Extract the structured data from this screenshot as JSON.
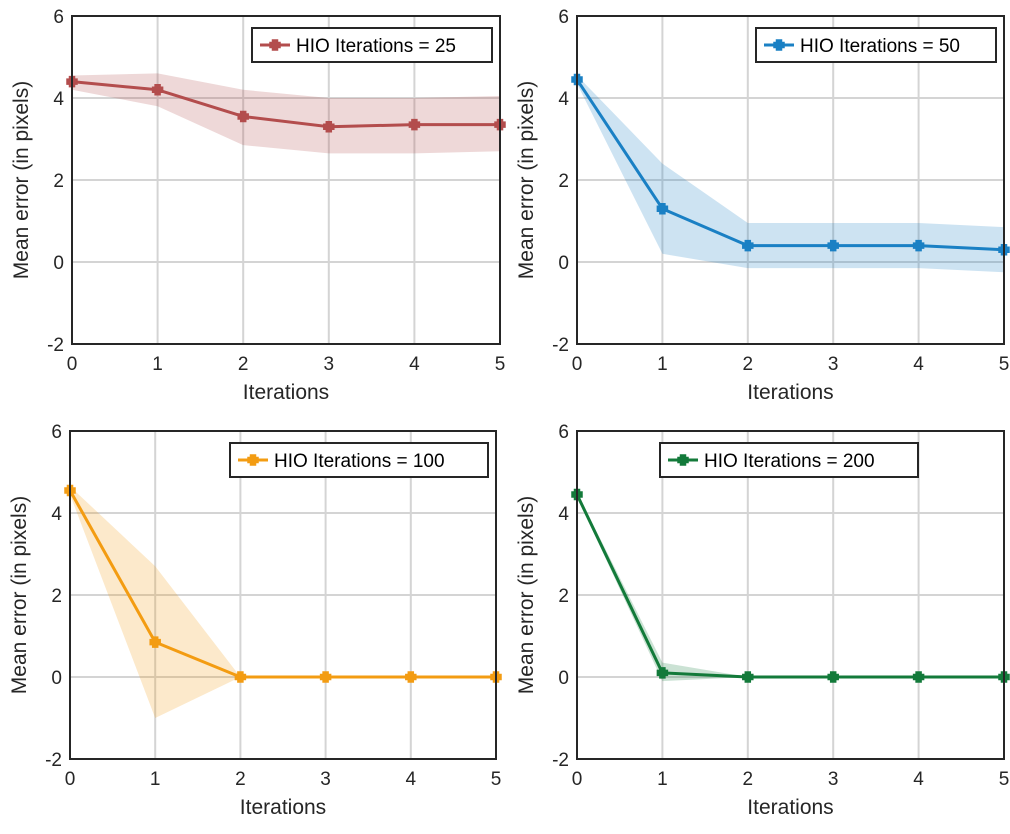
{
  "chart_data": [
    {
      "type": "line",
      "xlabel": "Iterations",
      "ylabel": "Mean error (in pixels)",
      "xlim": [
        0,
        5
      ],
      "ylim": [
        -2,
        6
      ],
      "xticks": [
        "0",
        "1",
        "2",
        "3",
        "4",
        "5"
      ],
      "yticks": [
        "-2",
        "0",
        "2",
        "4",
        "6"
      ],
      "grid": true,
      "legend_position": "top-right",
      "color": "#b34d4d",
      "series": [
        {
          "name": "HIO Iterations = 25",
          "x": [
            0,
            1,
            2,
            3,
            4,
            5
          ],
          "y": [
            4.4,
            4.2,
            3.55,
            3.3,
            3.35,
            3.35
          ],
          "lower": [
            4.2,
            3.8,
            2.85,
            2.65,
            2.65,
            2.7
          ],
          "upper": [
            4.55,
            4.6,
            4.2,
            4.0,
            4.0,
            4.05
          ]
        }
      ]
    },
    {
      "type": "line",
      "xlabel": "Iterations",
      "ylabel": "Mean error (in pixels)",
      "xlim": [
        0,
        5
      ],
      "ylim": [
        -2,
        6
      ],
      "xticks": [
        "0",
        "1",
        "2",
        "3",
        "4",
        "5"
      ],
      "yticks": [
        "-2",
        "0",
        "2",
        "4",
        "6"
      ],
      "grid": true,
      "legend_position": "top-right",
      "color": "#1a80c4",
      "series": [
        {
          "name": "HIO Iterations = 50",
          "x": [
            0,
            1,
            2,
            3,
            4,
            5
          ],
          "y": [
            4.45,
            1.3,
            0.4,
            0.4,
            0.4,
            0.3
          ],
          "lower": [
            4.35,
            0.2,
            -0.15,
            -0.15,
            -0.15,
            -0.25
          ],
          "upper": [
            4.55,
            2.4,
            0.95,
            0.95,
            0.95,
            0.85
          ]
        }
      ]
    },
    {
      "type": "line",
      "xlabel": "Iterations",
      "ylabel": "Mean error (in pixels)",
      "xlim": [
        0,
        5
      ],
      "ylim": [
        -2,
        6
      ],
      "xticks": [
        "0",
        "1",
        "2",
        "3",
        "4",
        "5"
      ],
      "yticks": [
        "-2",
        "0",
        "2",
        "4",
        "6"
      ],
      "grid": true,
      "legend_position": "top-right",
      "color": "#f39c12",
      "series": [
        {
          "name": "HIO Iterations = 100",
          "x": [
            0,
            1,
            2,
            3,
            4,
            5
          ],
          "y": [
            4.55,
            0.85,
            0.0,
            0.0,
            0.0,
            0.0
          ],
          "lower": [
            4.45,
            -1.0,
            0.0,
            0.0,
            0.0,
            0.0
          ],
          "upper": [
            4.65,
            2.7,
            0.0,
            0.0,
            0.0,
            0.0
          ]
        }
      ]
    },
    {
      "type": "line",
      "xlabel": "Iterations",
      "ylabel": "Mean error (in pixels)",
      "xlim": [
        0,
        5
      ],
      "ylim": [
        -2,
        6
      ],
      "xticks": [
        "0",
        "1",
        "2",
        "3",
        "4",
        "5"
      ],
      "yticks": [
        "-2",
        "0",
        "2",
        "4",
        "6"
      ],
      "grid": true,
      "legend_position": "top-right",
      "color": "#137a3a",
      "series": [
        {
          "name": "HIO Iterations = 200",
          "x": [
            0,
            1,
            2,
            3,
            4,
            5
          ],
          "y": [
            4.45,
            0.1,
            0.0,
            0.0,
            0.0,
            0.0
          ],
          "lower": [
            4.4,
            -0.1,
            0.0,
            0.0,
            0.0,
            0.0
          ],
          "upper": [
            4.5,
            0.35,
            0.0,
            0.0,
            0.0,
            0.0
          ]
        }
      ]
    }
  ]
}
